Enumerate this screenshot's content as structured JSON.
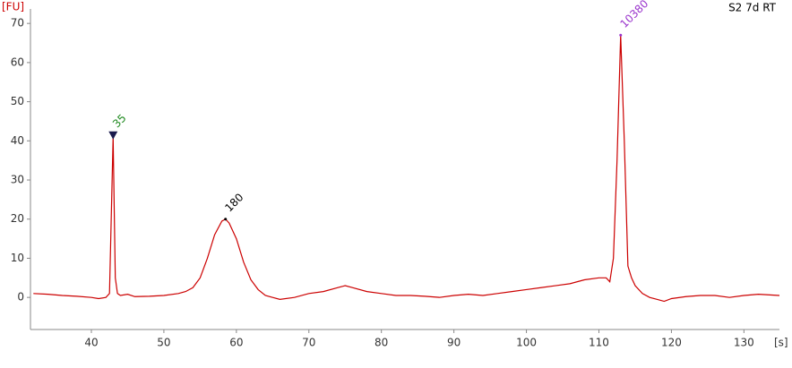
{
  "chart_data": {
    "type": "line",
    "title": "S2 7d RT",
    "y_label": "[FU]",
    "x_label": "[s]",
    "xlim": [
      31.6,
      134.9
    ],
    "ylim": [
      -8.2,
      73.7
    ],
    "xticks": [
      40,
      50,
      60,
      70,
      80,
      90,
      100,
      110,
      120,
      130
    ],
    "yticks": [
      0,
      10,
      20,
      30,
      40,
      50,
      60,
      70
    ],
    "series": [
      {
        "color": "#cc0000",
        "x": [
          32,
          34,
          36,
          38,
          40,
          41,
          42,
          42.5,
          43,
          43.3,
          43.6,
          44,
          45,
          46,
          48,
          50,
          52,
          53,
          54,
          55,
          56,
          57,
          58,
          58.5,
          59,
          60,
          61,
          62,
          63,
          64,
          65,
          66,
          68,
          70,
          72,
          74,
          75,
          76,
          78,
          80,
          82,
          84,
          86,
          88,
          90,
          92,
          94,
          96,
          98,
          100,
          102,
          104,
          106,
          108,
          110,
          111,
          111.5,
          112,
          112.5,
          113,
          113.5,
          114,
          114.5,
          115,
          116,
          117,
          118,
          119,
          120,
          122,
          124,
          126,
          128,
          130,
          132,
          134.9
        ],
        "values": [
          1,
          0.8,
          0.5,
          0.3,
          0,
          -0.3,
          0,
          1,
          41,
          5,
          1,
          0.5,
          0.8,
          0.2,
          0.3,
          0.5,
          1,
          1.5,
          2.5,
          5,
          10,
          16,
          19.5,
          20,
          19,
          15,
          9,
          4.5,
          2,
          0.5,
          0,
          -0.5,
          0,
          1,
          1.5,
          2.5,
          3,
          2.5,
          1.5,
          1,
          0.5,
          0.5,
          0.3,
          0,
          0.5,
          0.8,
          0.5,
          1,
          1.5,
          2,
          2.5,
          3,
          3.5,
          4.5,
          5,
          5,
          4,
          10,
          35,
          67,
          40,
          8,
          5,
          3,
          1,
          0,
          -0.5,
          -1,
          -0.3,
          0.2,
          0.5,
          0.5,
          0,
          0.5,
          0.8,
          0.5
        ]
      }
    ],
    "peaks": [
      {
        "label": "35",
        "x": 43,
        "y": 41.5,
        "color": "#228b22",
        "marker": "triangle"
      },
      {
        "label": "180",
        "x": 58.5,
        "y": 20,
        "color": "#000000"
      },
      {
        "label": "10380",
        "x": 113,
        "y": 67,
        "color": "#9932cc"
      }
    ]
  }
}
